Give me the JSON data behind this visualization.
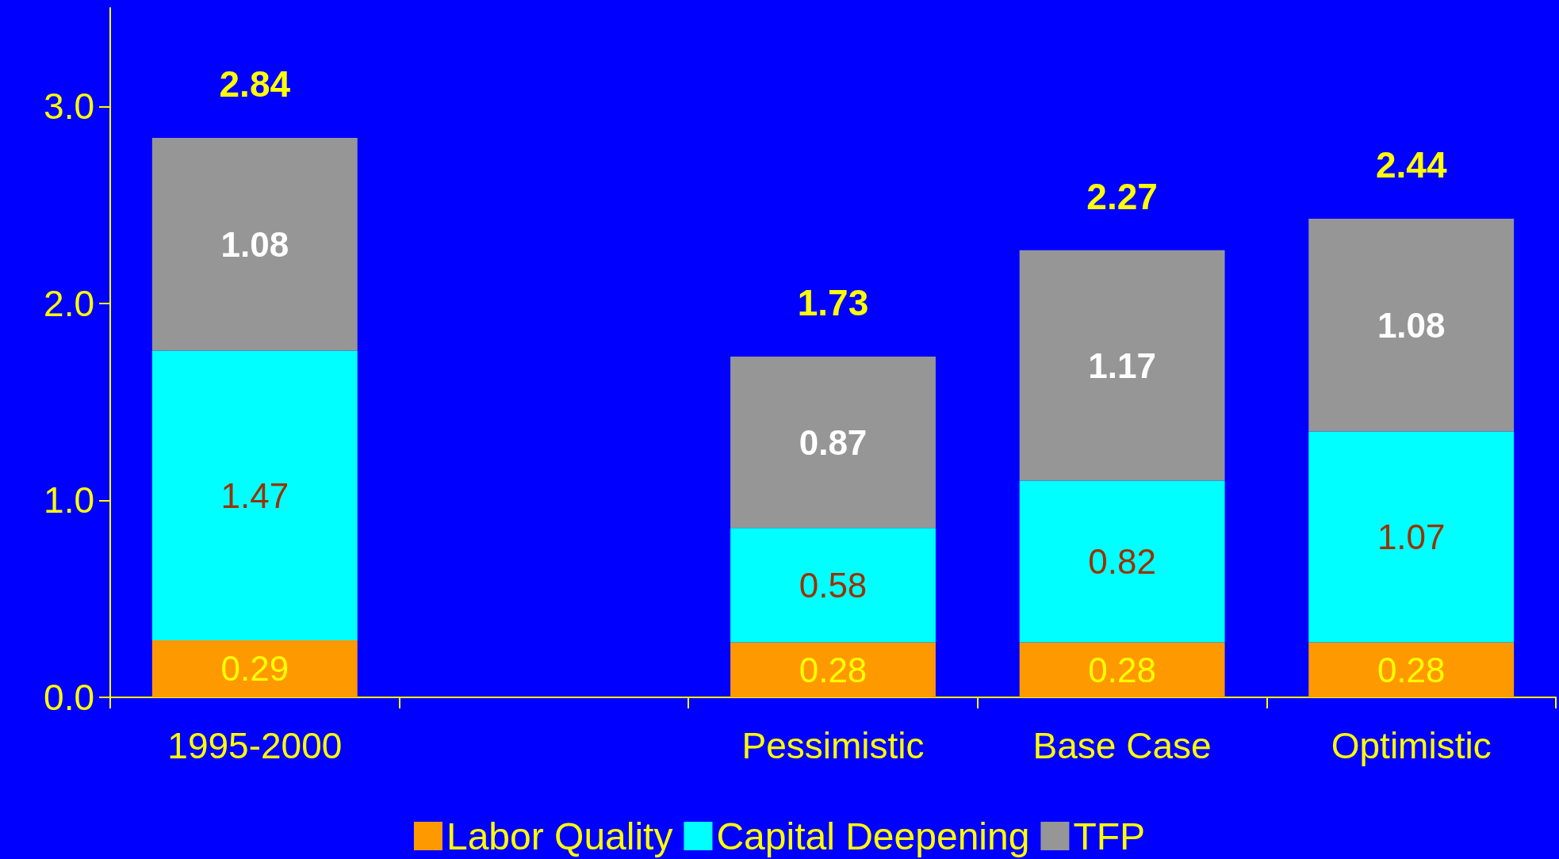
{
  "chart_data": {
    "type": "bar",
    "stacked": true,
    "categories": [
      "1995-2000",
      null,
      "Pessimistic",
      "Base Case",
      "Optimistic"
    ],
    "series": [
      {
        "name": "Labor Quality",
        "color": "#ff9900",
        "values": [
          0.29,
          null,
          0.28,
          0.28,
          0.28
        ]
      },
      {
        "name": "Capital Deepening",
        "color": "#00ffff",
        "values": [
          1.47,
          null,
          0.58,
          0.82,
          1.07
        ]
      },
      {
        "name": "TFP",
        "color": "#969696",
        "values": [
          1.08,
          null,
          0.87,
          1.17,
          1.08
        ]
      }
    ],
    "data_labels": true,
    "totals": [
      "2.84",
      null,
      "1.73",
      "2.27",
      "2.44"
    ],
    "ylim": [
      0,
      3.5
    ],
    "yticks": [
      {
        "value": 0,
        "label": "0.0"
      },
      {
        "value": 1,
        "label": "1.0"
      },
      {
        "value": 2,
        "label": "2.0"
      },
      {
        "value": 3,
        "label": "3.0"
      }
    ],
    "grid": false,
    "legend": "bottom"
  }
}
